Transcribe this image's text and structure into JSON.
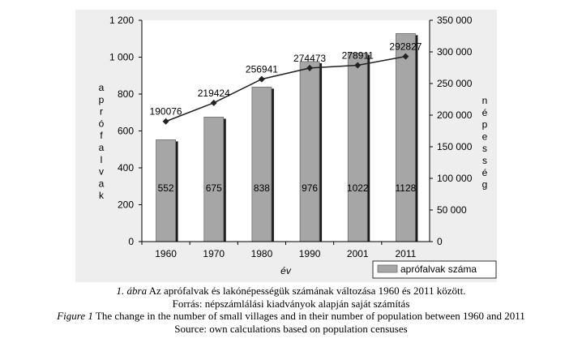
{
  "chart_data": {
    "type": "bar+line",
    "categories": [
      "1960",
      "1970",
      "1980",
      "1990",
      "2001",
      "2011"
    ],
    "series": [
      {
        "name": "aprófalvak száma",
        "kind": "bar",
        "axis": "left",
        "values": [
          552,
          675,
          838,
          976,
          1022,
          1128
        ]
      },
      {
        "name": "",
        "kind": "line",
        "axis": "right",
        "values": [
          190076,
          219424,
          256941,
          274473,
          278911,
          292827
        ]
      }
    ],
    "bar_value_labels": [
      "552",
      "675",
      "838",
      "976",
      "1022",
      "1128"
    ],
    "line_value_labels": [
      "190076",
      "219424",
      "256941",
      "274473",
      "278911",
      "292827"
    ],
    "left_axis": {
      "label": "aprófalvak",
      "ylim": [
        0,
        1200
      ],
      "ticks": [
        "0",
        "200",
        "400",
        "600",
        "800",
        "1 000",
        "1 200"
      ]
    },
    "right_axis": {
      "label": "népesség",
      "ylim": [
        0,
        350000
      ],
      "ticks": [
        "0",
        "50 000",
        "100 000",
        "150 000",
        "200 000",
        "250 000",
        "300 000",
        "350 000"
      ]
    },
    "xlabel": "év",
    "legend": {
      "position": "bottom-right",
      "entries": [
        "aprófalvak száma"
      ]
    },
    "grid": false,
    "colors": {
      "bar": "#a6a6a6",
      "bar_shadow": "#1a1a1a",
      "line": "#222222",
      "panel_bg": "#eeeeee"
    }
  },
  "caption": {
    "line1_prefix": "1. ábra",
    "line1_text": " Az aprófalvak és lakónépességük számának változása 1960 és 2011 között.",
    "line2": "Forrás: népszámlálási kiadványok alapján saját számítás",
    "line3_prefix": "Figure 1",
    "line3_text": " The change in the number of small villages and in their number of population between 1960 and 2011",
    "line4": "Source: own calculations based on population censuses"
  }
}
